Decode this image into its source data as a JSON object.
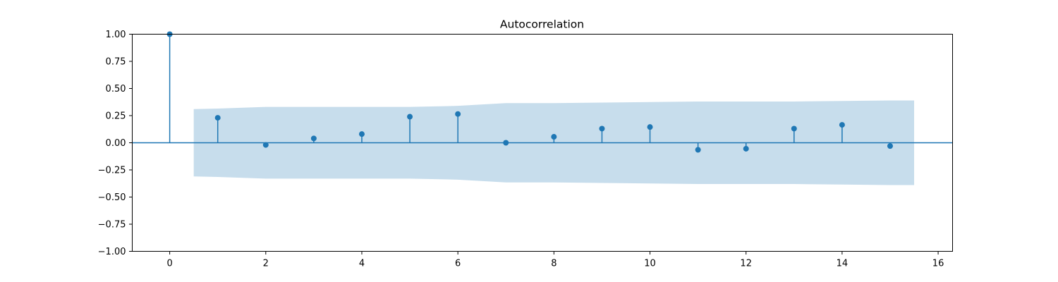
{
  "chart_data": {
    "type": "stem",
    "title": "Autocorrelation",
    "xlabel": "",
    "ylabel": "",
    "xlim": [
      -0.78,
      16.3
    ],
    "ylim": [
      -1.0,
      1.0
    ],
    "x_ticks": [
      0,
      2,
      4,
      6,
      8,
      10,
      12,
      14,
      16
    ],
    "x_tick_labels": [
      "0",
      "2",
      "4",
      "6",
      "8",
      "10",
      "12",
      "14",
      "16"
    ],
    "y_ticks": [
      1.0,
      0.75,
      0.5,
      0.25,
      0.0,
      -0.25,
      -0.5,
      -0.75,
      -1.0
    ],
    "y_tick_labels": [
      "1.00",
      "0.75",
      "0.50",
      "0.25",
      "0.00",
      "−0.25",
      "−0.50",
      "−0.75",
      "−1.00"
    ],
    "series": [
      {
        "lags": [
          0,
          1,
          2,
          3,
          4,
          5,
          6,
          7,
          8,
          9,
          10,
          11,
          12,
          13,
          14,
          15
        ],
        "values": [
          1.0,
          0.23,
          -0.02,
          0.04,
          0.08,
          0.24,
          0.265,
          0.0,
          0.055,
          0.13,
          0.145,
          -0.065,
          -0.055,
          0.13,
          0.165,
          -0.03
        ]
      }
    ],
    "confidence_band": {
      "x": [
        0.5,
        1,
        2,
        3,
        4,
        5,
        6,
        7,
        8,
        9,
        10,
        11,
        12,
        13,
        14,
        15,
        15.5
      ],
      "upper": [
        0.31,
        0.315,
        0.33,
        0.33,
        0.33,
        0.33,
        0.34,
        0.365,
        0.365,
        0.37,
        0.375,
        0.38,
        0.38,
        0.38,
        0.385,
        0.39,
        0.39
      ],
      "lower": [
        -0.31,
        -0.315,
        -0.33,
        -0.33,
        -0.33,
        -0.33,
        -0.34,
        -0.365,
        -0.365,
        -0.37,
        -0.375,
        -0.38,
        -0.38,
        -0.38,
        -0.385,
        -0.39,
        -0.39
      ]
    },
    "grid": false,
    "legend": "none",
    "colors": {
      "stem": "#1f77b4",
      "band": "#1f77b4",
      "zero_line": "#1f77b4",
      "axes": "#000000"
    }
  }
}
